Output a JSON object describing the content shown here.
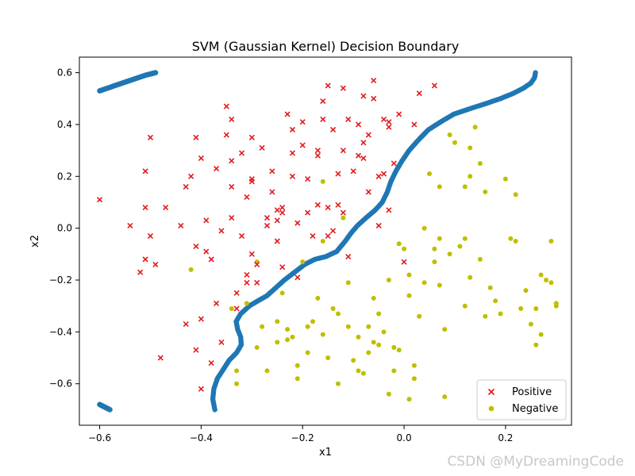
{
  "chart_data": {
    "type": "scatter",
    "title": "SVM (Gaussian Kernel) Decision Boundary",
    "xlabel": "x1",
    "ylabel": "x2",
    "xlim": [
      -0.64,
      0.33
    ],
    "ylim": [
      -0.76,
      0.66
    ],
    "xticks": [
      -0.6,
      -0.4,
      -0.2,
      0.0,
      0.2
    ],
    "xtick_labels": [
      "−0.6",
      "−0.4",
      "−0.2",
      "0.0",
      "0.2"
    ],
    "yticks": [
      -0.6,
      -0.4,
      -0.2,
      0.0,
      0.2,
      0.4,
      0.6
    ],
    "yticklabels": [
      "−0.6",
      "−0.4",
      "−0.2",
      "0.0",
      "0.2",
      "0.4",
      "0.6"
    ],
    "grid": false,
    "legend_position": "lower-right",
    "colors": {
      "positive": "#e31a1c",
      "negative": "#bfbf00",
      "boundary": "#1f77b4"
    },
    "series": [
      {
        "name": "Positive",
        "marker": "x",
        "points": [
          [
            -0.6,
            0.11
          ],
          [
            -0.54,
            0.01
          ],
          [
            -0.52,
            -0.17
          ],
          [
            -0.51,
            -0.12
          ],
          [
            -0.5,
            -0.03
          ],
          [
            -0.51,
            0.08
          ],
          [
            -0.51,
            0.22
          ],
          [
            -0.5,
            0.35
          ],
          [
            -0.49,
            -0.14
          ],
          [
            -0.47,
            0.08
          ],
          [
            -0.48,
            -0.5
          ],
          [
            -0.44,
            0.01
          ],
          [
            -0.43,
            0.16
          ],
          [
            -0.43,
            -0.37
          ],
          [
            -0.42,
            0.2
          ],
          [
            -0.41,
            0.35
          ],
          [
            -0.41,
            -0.07
          ],
          [
            -0.41,
            -0.47
          ],
          [
            -0.4,
            0.27
          ],
          [
            -0.4,
            -0.35
          ],
          [
            -0.4,
            -0.62
          ],
          [
            -0.39,
            0.03
          ],
          [
            -0.39,
            -0.09
          ],
          [
            -0.38,
            -0.12
          ],
          [
            -0.38,
            -0.52
          ],
          [
            -0.37,
            0.23
          ],
          [
            -0.37,
            -0.29
          ],
          [
            -0.36,
            -0.44
          ],
          [
            -0.36,
            -0.01
          ],
          [
            -0.35,
            0.36
          ],
          [
            -0.35,
            0.47
          ],
          [
            -0.34,
            0.42
          ],
          [
            -0.34,
            0.26
          ],
          [
            -0.34,
            0.16
          ],
          [
            -0.34,
            0.04
          ],
          [
            -0.33,
            -0.25
          ],
          [
            -0.33,
            -0.31
          ],
          [
            -0.32,
            0.29
          ],
          [
            -0.32,
            -0.03
          ],
          [
            -0.31,
            0.12
          ],
          [
            -0.31,
            -0.18
          ],
          [
            -0.31,
            -0.21
          ],
          [
            -0.3,
            0.35
          ],
          [
            -0.3,
            0.18
          ],
          [
            -0.3,
            0.19
          ],
          [
            -0.3,
            -0.1
          ],
          [
            -0.29,
            -0.14
          ],
          [
            -0.29,
            -0.21
          ],
          [
            -0.28,
            0.31
          ],
          [
            -0.27,
            0.04
          ],
          [
            -0.27,
            0.01
          ],
          [
            -0.26,
            0.14
          ],
          [
            -0.26,
            0.22
          ],
          [
            -0.25,
            0.03
          ],
          [
            -0.25,
            0.07
          ],
          [
            -0.25,
            -0.05
          ],
          [
            -0.24,
            0.06
          ],
          [
            -0.24,
            0.08
          ],
          [
            -0.24,
            -0.15
          ],
          [
            -0.23,
            0.44
          ],
          [
            -0.22,
            0.38
          ],
          [
            -0.22,
            0.29
          ],
          [
            -0.22,
            0.2
          ],
          [
            -0.21,
            0.02
          ],
          [
            -0.21,
            -0.19
          ],
          [
            -0.2,
            0.41
          ],
          [
            -0.2,
            0.32
          ],
          [
            -0.19,
            0.19
          ],
          [
            -0.19,
            0.06
          ],
          [
            -0.18,
            -0.03
          ],
          [
            -0.17,
            0.3
          ],
          [
            -0.17,
            0.28
          ],
          [
            -0.17,
            0.09
          ],
          [
            -0.16,
            0.49
          ],
          [
            -0.16,
            0.42
          ],
          [
            -0.15,
            0.55
          ],
          [
            -0.15,
            0.08
          ],
          [
            -0.15,
            -0.03
          ],
          [
            -0.14,
            0.38
          ],
          [
            -0.14,
            -0.01
          ],
          [
            -0.13,
            0.21
          ],
          [
            -0.13,
            0.09
          ],
          [
            -0.12,
            0.06
          ],
          [
            -0.12,
            0.54
          ],
          [
            -0.12,
            0.3
          ],
          [
            -0.11,
            0.42
          ],
          [
            -0.11,
            -0.11
          ],
          [
            -0.1,
            0.22
          ],
          [
            -0.09,
            0.4
          ],
          [
            -0.09,
            0.28
          ],
          [
            -0.08,
            0.51
          ],
          [
            -0.08,
            0.33
          ],
          [
            -0.08,
            0.27
          ],
          [
            -0.07,
            0.36
          ],
          [
            -0.07,
            0.14
          ],
          [
            -0.06,
            0.57
          ],
          [
            -0.06,
            0.5
          ],
          [
            -0.05,
            0.2
          ],
          [
            -0.05,
            0.01
          ],
          [
            -0.04,
            0.42
          ],
          [
            -0.04,
            0.21
          ],
          [
            -0.03,
            0.41
          ],
          [
            -0.03,
            0.39
          ],
          [
            -0.03,
            0.07
          ],
          [
            -0.02,
            0.25
          ],
          [
            -0.01,
            0.44
          ],
          [
            0.0,
            -0.13
          ],
          [
            0.02,
            0.4
          ],
          [
            0.03,
            0.52
          ],
          [
            0.06,
            0.55
          ]
        ]
      },
      {
        "name": "Negative",
        "marker": "o",
        "points": [
          [
            -0.42,
            -0.16
          ],
          [
            -0.34,
            -0.31
          ],
          [
            -0.33,
            -0.55
          ],
          [
            -0.33,
            -0.6
          ],
          [
            -0.31,
            -0.29
          ],
          [
            -0.29,
            -0.13
          ],
          [
            -0.29,
            -0.46
          ],
          [
            -0.28,
            -0.38
          ],
          [
            -0.27,
            -0.55
          ],
          [
            -0.25,
            -0.44
          ],
          [
            -0.25,
            -0.36
          ],
          [
            -0.24,
            -0.25
          ],
          [
            -0.23,
            -0.39
          ],
          [
            -0.23,
            -0.43
          ],
          [
            -0.22,
            -0.42
          ],
          [
            -0.21,
            -0.58
          ],
          [
            -0.21,
            -0.53
          ],
          [
            -0.2,
            -0.13
          ],
          [
            -0.19,
            -0.48
          ],
          [
            -0.19,
            -0.38
          ],
          [
            -0.18,
            -0.36
          ],
          [
            -0.17,
            -0.27
          ],
          [
            -0.16,
            0.18
          ],
          [
            -0.16,
            -0.05
          ],
          [
            -0.16,
            -0.41
          ],
          [
            -0.15,
            -0.5
          ],
          [
            -0.14,
            -0.31
          ],
          [
            -0.13,
            -0.33
          ],
          [
            -0.13,
            -0.6
          ],
          [
            -0.12,
            0.04
          ],
          [
            -0.11,
            -0.21
          ],
          [
            -0.11,
            -0.38
          ],
          [
            -0.1,
            -0.51
          ],
          [
            -0.09,
            -0.42
          ],
          [
            -0.09,
            -0.55
          ],
          [
            -0.08,
            -0.56
          ],
          [
            -0.07,
            -0.38
          ],
          [
            -0.07,
            -0.48
          ],
          [
            -0.06,
            -0.27
          ],
          [
            -0.06,
            -0.44
          ],
          [
            -0.05,
            -0.33
          ],
          [
            -0.05,
            -0.45
          ],
          [
            -0.04,
            -0.4
          ],
          [
            -0.03,
            -0.2
          ],
          [
            -0.03,
            -0.64
          ],
          [
            -0.02,
            -0.46
          ],
          [
            -0.02,
            -0.55
          ],
          [
            -0.01,
            -0.47
          ],
          [
            -0.01,
            -0.06
          ],
          [
            0.0,
            -0.08
          ],
          [
            0.01,
            -0.26
          ],
          [
            0.01,
            -0.18
          ],
          [
            0.01,
            -0.66
          ],
          [
            0.02,
            -0.53
          ],
          [
            0.02,
            -0.58
          ],
          [
            0.03,
            -0.34
          ],
          [
            0.04,
            0.0
          ],
          [
            0.04,
            -0.21
          ],
          [
            0.05,
            0.21
          ],
          [
            0.06,
            -0.08
          ],
          [
            0.06,
            -0.13
          ],
          [
            0.07,
            0.16
          ],
          [
            0.07,
            -0.04
          ],
          [
            0.07,
            -0.22
          ],
          [
            0.08,
            -0.39
          ],
          [
            0.08,
            -0.65
          ],
          [
            0.09,
            0.36
          ],
          [
            0.09,
            -0.1
          ],
          [
            0.1,
            0.33
          ],
          [
            0.11,
            -0.07
          ],
          [
            0.12,
            0.16
          ],
          [
            0.12,
            -0.04
          ],
          [
            0.12,
            -0.3
          ],
          [
            0.13,
            0.31
          ],
          [
            0.13,
            0.2
          ],
          [
            0.13,
            -0.19
          ],
          [
            0.14,
            0.39
          ],
          [
            0.15,
            0.25
          ],
          [
            0.15,
            -0.12
          ],
          [
            0.16,
            0.14
          ],
          [
            0.16,
            -0.34
          ],
          [
            0.17,
            -0.23
          ],
          [
            0.18,
            -0.28
          ],
          [
            0.19,
            -0.33
          ],
          [
            0.2,
            0.19
          ],
          [
            0.21,
            -0.04
          ],
          [
            0.22,
            -0.05
          ],
          [
            0.23,
            -0.31
          ],
          [
            0.24,
            -0.24
          ],
          [
            0.25,
            -0.37
          ],
          [
            0.26,
            -0.31
          ],
          [
            0.26,
            -0.45
          ],
          [
            0.27,
            -0.18
          ],
          [
            0.28,
            -0.2
          ],
          [
            0.29,
            -0.05
          ],
          [
            0.29,
            -0.21
          ],
          [
            0.3,
            -0.3
          ],
          [
            0.3,
            -0.29
          ],
          [
            0.27,
            -0.41
          ],
          [
            0.22,
            0.13
          ]
        ]
      },
      {
        "marker": "o",
        "boundary_path": [
          [
            -0.373,
            -0.7
          ],
          [
            -0.377,
            -0.66
          ],
          [
            -0.375,
            -0.62
          ],
          [
            -0.368,
            -0.58
          ],
          [
            -0.358,
            -0.55
          ],
          [
            -0.345,
            -0.51
          ],
          [
            -0.33,
            -0.48
          ],
          [
            -0.321,
            -0.45
          ],
          [
            -0.322,
            -0.42
          ],
          [
            -0.328,
            -0.39
          ],
          [
            -0.331,
            -0.36
          ],
          [
            -0.322,
            -0.33
          ],
          [
            -0.305,
            -0.3
          ],
          [
            -0.288,
            -0.28
          ],
          [
            -0.27,
            -0.26
          ],
          [
            -0.253,
            -0.23
          ],
          [
            -0.236,
            -0.2
          ],
          [
            -0.216,
            -0.17
          ],
          [
            -0.196,
            -0.14
          ],
          [
            -0.176,
            -0.12
          ],
          [
            -0.155,
            -0.11
          ],
          [
            -0.133,
            -0.09
          ],
          [
            -0.116,
            -0.05
          ],
          [
            -0.105,
            -0.02
          ],
          [
            -0.092,
            0.01
          ],
          [
            -0.075,
            0.04
          ],
          [
            -0.057,
            0.07
          ],
          [
            -0.043,
            0.1
          ],
          [
            -0.033,
            0.14
          ],
          [
            -0.026,
            0.18
          ],
          [
            -0.016,
            0.22
          ],
          [
            -0.004,
            0.26
          ],
          [
            0.01,
            0.3
          ],
          [
            0.028,
            0.34
          ],
          [
            0.048,
            0.38
          ],
          [
            0.072,
            0.41
          ],
          [
            0.098,
            0.44
          ],
          [
            0.128,
            0.46
          ],
          [
            0.16,
            0.48
          ],
          [
            0.19,
            0.5
          ],
          [
            0.215,
            0.52
          ],
          [
            0.235,
            0.54
          ],
          [
            0.25,
            0.56
          ],
          [
            0.257,
            0.58
          ],
          [
            0.259,
            0.6
          ]
        ],
        "cluster_paths": [
          [
            [
              -0.6,
              0.53
            ],
            [
              -0.57,
              0.55
            ],
            [
              -0.54,
              0.57
            ],
            [
              -0.51,
              0.59
            ],
            [
              -0.49,
              0.6
            ]
          ],
          [
            [
              -0.6,
              -0.68
            ],
            [
              -0.59,
              -0.69
            ],
            [
              -0.58,
              -0.7
            ]
          ]
        ]
      }
    ]
  },
  "watermark": "CSDN @MyDreamingCode"
}
